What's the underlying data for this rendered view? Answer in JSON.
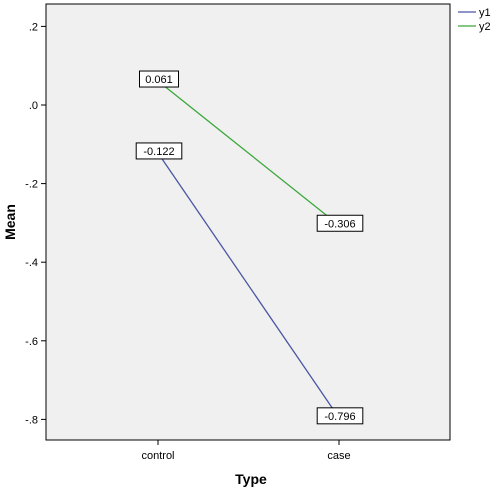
{
  "chart_data": {
    "type": "line",
    "xlabel": "Type",
    "ylabel": "Mean",
    "categories": [
      "control",
      "case"
    ],
    "ylim": [
      -0.9,
      0.25
    ],
    "y_ticks": [
      0.2,
      0.0,
      -0.2,
      -0.4,
      -0.6,
      -0.8
    ],
    "y_tick_labels": [
      ".2",
      ".0",
      "-.2",
      "-.4",
      "-.6",
      "-.8"
    ],
    "series": [
      {
        "name": "y1",
        "values": [
          -0.122,
          -0.796
        ],
        "labels": [
          "-0.122",
          "-0.796"
        ],
        "color": "#4a56a3"
      },
      {
        "name": "y2",
        "values": [
          0.061,
          -0.306
        ],
        "labels": [
          "0.061",
          "-0.306"
        ],
        "color": "#3aa83a"
      }
    ],
    "legend_position": "top-right",
    "grid": false,
    "plot_background": "#f0f0f0",
    "frame_color": "#000000"
  }
}
